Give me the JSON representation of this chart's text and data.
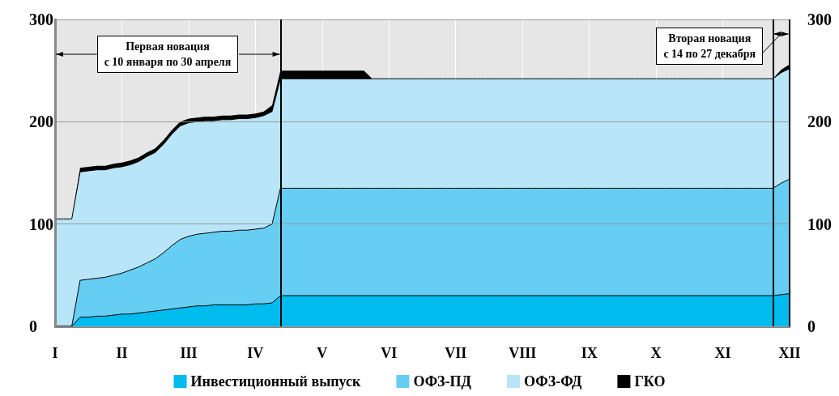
{
  "chart_data": {
    "type": "area",
    "stacked": true,
    "grid": true,
    "legend": "bottom",
    "marker": "none",
    "categories": [
      "I",
      null,
      null,
      null,
      null,
      null,
      null,
      null,
      "II",
      null,
      null,
      null,
      null,
      null,
      null,
      null,
      "III",
      null,
      null,
      null,
      null,
      null,
      null,
      null,
      "IV",
      null,
      null,
      null,
      null,
      null,
      null,
      null,
      "V",
      null,
      null,
      null,
      null,
      null,
      null,
      null,
      "VI",
      null,
      null,
      null,
      null,
      null,
      null,
      null,
      "VII",
      null,
      null,
      null,
      null,
      null,
      null,
      null,
      "VIII",
      null,
      null,
      null,
      null,
      null,
      null,
      null,
      "IX",
      null,
      null,
      null,
      null,
      null,
      null,
      null,
      "X",
      null,
      null,
      null,
      null,
      null,
      null,
      null,
      "XI",
      null,
      null,
      null,
      null,
      null,
      null,
      null,
      "XII"
    ],
    "ylim": [
      0,
      300
    ],
    "yticks": [
      0,
      100,
      200,
      300
    ],
    "y2lim": [
      0,
      300
    ],
    "y2ticks": [
      0,
      100,
      200,
      300
    ],
    "series": [
      {
        "name": "Инвестиционный выпуск",
        "color": "#00bbee",
        "values": [
          0,
          0,
          0,
          9,
          9,
          10,
          10,
          11,
          12,
          12,
          13,
          14,
          15,
          16,
          17,
          18,
          19,
          20,
          20,
          21,
          21,
          21,
          21,
          21,
          22,
          22,
          23,
          30,
          30,
          30,
          30,
          30,
          30,
          30,
          30,
          30,
          30,
          30,
          30,
          30,
          30,
          30,
          30,
          30,
          30,
          30,
          30,
          30,
          30,
          30,
          30,
          30,
          30,
          30,
          30,
          30,
          30,
          30,
          30,
          30,
          30,
          30,
          30,
          30,
          30,
          30,
          30,
          30,
          30,
          30,
          30,
          30,
          30,
          30,
          30,
          30,
          30,
          30,
          30,
          30,
          30,
          30,
          30,
          30,
          30,
          30,
          30,
          31,
          32
        ]
      },
      {
        "name": "ОФЗ-ПД",
        "color": "#66cdf3",
        "values": [
          0,
          0,
          0,
          36,
          37,
          37,
          38,
          39,
          40,
          43,
          45,
          48,
          51,
          56,
          62,
          67,
          69,
          70,
          71,
          71,
          72,
          72,
          73,
          73,
          73,
          74,
          77,
          105,
          105,
          105,
          105,
          105,
          105,
          105,
          105,
          105,
          105,
          105,
          105,
          105,
          105,
          105,
          105,
          105,
          105,
          105,
          105,
          105,
          105,
          105,
          105,
          105,
          105,
          105,
          105,
          105,
          105,
          105,
          105,
          105,
          105,
          105,
          105,
          105,
          105,
          105,
          105,
          105,
          105,
          105,
          105,
          105,
          105,
          105,
          105,
          105,
          105,
          105,
          105,
          105,
          105,
          105,
          105,
          105,
          105,
          105,
          105,
          109,
          112
        ]
      },
      {
        "name": "ОФЗ-ФД",
        "color": "#b8e5f8",
        "values": [
          105,
          105,
          105,
          106,
          106,
          106,
          105,
          105,
          104,
          103,
          103,
          104,
          104,
          106,
          109,
          111,
          111,
          110,
          110,
          109,
          109,
          109,
          109,
          109,
          109,
          110,
          110,
          107,
          107,
          107,
          107,
          107,
          107,
          107,
          107,
          107,
          107,
          107,
          107,
          107,
          107,
          107,
          107,
          107,
          107,
          107,
          107,
          107,
          107,
          107,
          107,
          107,
          107,
          107,
          107,
          107,
          107,
          107,
          107,
          107,
          107,
          107,
          107,
          107,
          107,
          107,
          107,
          107,
          107,
          107,
          107,
          107,
          107,
          107,
          107,
          107,
          107,
          107,
          107,
          107,
          107,
          107,
          107,
          107,
          107,
          107,
          107,
          108,
          108
        ]
      },
      {
        "name": "ГКО",
        "color": "#000000",
        "values": [
          0,
          0,
          0,
          4,
          4,
          4,
          4,
          4,
          4,
          4,
          4,
          4,
          4,
          4,
          4,
          4,
          4,
          4,
          4,
          4,
          4,
          4,
          4,
          4,
          4,
          4,
          6,
          8,
          8,
          8,
          8,
          8,
          8,
          8,
          8,
          8,
          8,
          8,
          0,
          0,
          0,
          0,
          0,
          0,
          0,
          0,
          0,
          0,
          0,
          0,
          0,
          0,
          0,
          0,
          0,
          0,
          0,
          0,
          0,
          0,
          0,
          0,
          0,
          0,
          0,
          0,
          0,
          0,
          0,
          0,
          0,
          0,
          0,
          0,
          0,
          0,
          0,
          0,
          0,
          0,
          0,
          0,
          0,
          0,
          0,
          0,
          0,
          3,
          4
        ]
      }
    ],
    "annotations": [
      "Первая новация\nс 10 января по 30 апреля",
      "Вторая новация\nс 14 по 27 декабря"
    ]
  }
}
